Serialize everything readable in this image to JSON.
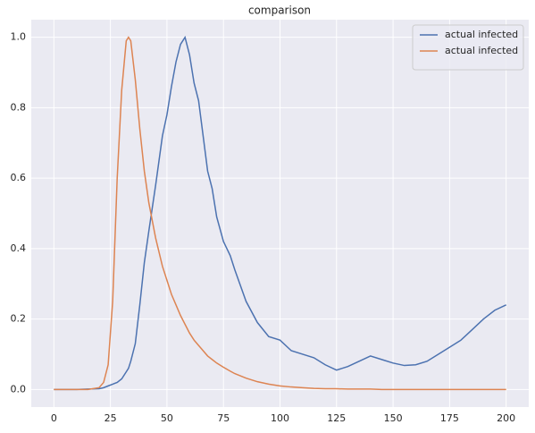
{
  "chart_data": {
    "type": "line",
    "title": "comparison",
    "x": [
      0,
      5,
      10,
      15,
      20,
      22,
      24,
      26,
      28,
      30,
      32,
      33,
      34,
      36,
      38,
      40,
      42,
      45,
      48,
      50,
      52,
      54,
      56,
      58,
      60,
      62,
      64,
      66,
      68,
      70,
      72,
      75,
      78,
      80,
      85,
      90,
      95,
      100,
      105,
      110,
      115,
      120,
      125,
      130,
      135,
      140,
      145,
      150,
      155,
      160,
      165,
      170,
      175,
      180,
      185,
      190,
      195,
      200
    ],
    "series": [
      {
        "name": "actual infected",
        "color": "#4c72b0",
        "values": [
          0,
          0,
          0,
          0.001,
          0.002,
          0.005,
          0.01,
          0.015,
          0.02,
          0.03,
          0.05,
          0.06,
          0.08,
          0.13,
          0.24,
          0.36,
          0.45,
          0.58,
          0.72,
          0.78,
          0.86,
          0.93,
          0.98,
          1.0,
          0.95,
          0.87,
          0.82,
          0.72,
          0.62,
          0.57,
          0.49,
          0.42,
          0.38,
          0.34,
          0.25,
          0.19,
          0.15,
          0.14,
          0.11,
          0.1,
          0.09,
          0.07,
          0.055,
          0.065,
          0.08,
          0.095,
          0.085,
          0.075,
          0.068,
          0.07,
          0.08,
          0.1,
          0.12,
          0.14,
          0.17,
          0.2,
          0.225,
          0.24
        ]
      },
      {
        "name": "actual infected",
        "color": "#dd8452",
        "values": [
          0,
          0,
          0,
          0,
          0.005,
          0.02,
          0.07,
          0.25,
          0.6,
          0.85,
          0.99,
          1.0,
          0.99,
          0.88,
          0.74,
          0.62,
          0.53,
          0.43,
          0.35,
          0.31,
          0.27,
          0.24,
          0.21,
          0.185,
          0.16,
          0.14,
          0.125,
          0.11,
          0.095,
          0.085,
          0.075,
          0.063,
          0.052,
          0.045,
          0.032,
          0.022,
          0.015,
          0.01,
          0.007,
          0.005,
          0.003,
          0.002,
          0.002,
          0.001,
          0.001,
          0.001,
          0,
          0,
          0,
          0,
          0,
          0,
          0,
          0,
          0,
          0,
          0,
          0
        ]
      }
    ],
    "xlim": [
      -10,
      210
    ],
    "xticks": [
      0,
      25,
      50,
      75,
      100,
      125,
      150,
      175,
      200
    ],
    "ylim": [
      -0.05,
      1.05
    ],
    "yticks": [
      {
        "value": 0,
        "label": "0.0"
      },
      0.2,
      0.4,
      0.6,
      0.8,
      {
        "value": 1,
        "label": "1.0"
      }
    ],
    "grid": true,
    "legend": "upper right"
  }
}
